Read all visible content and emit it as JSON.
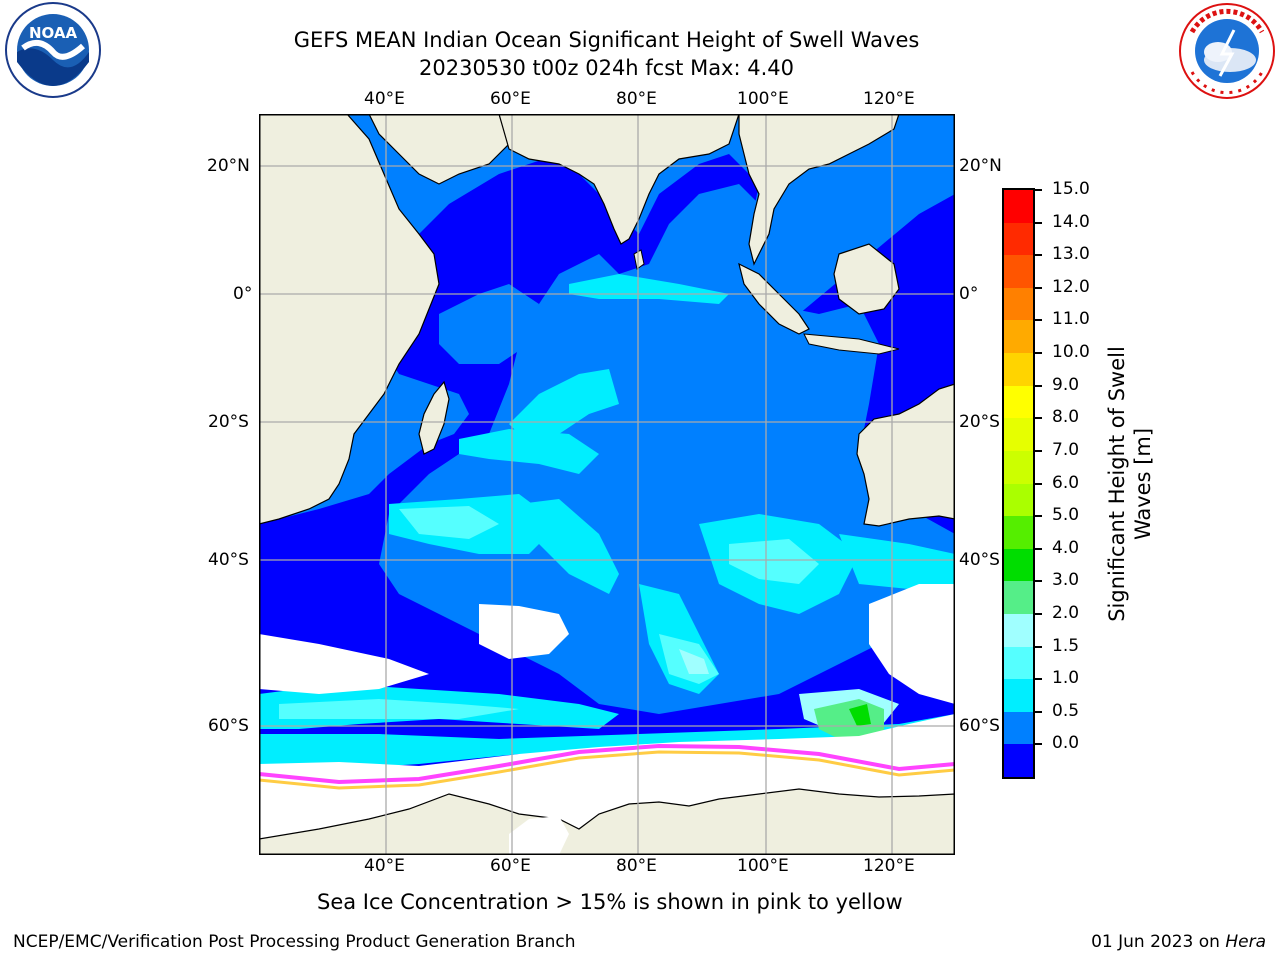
{
  "title": {
    "line1": "GEFS MEAN Indian Ocean Significant Height of Swell Waves",
    "line2": "20230530 t00z 024h fcst   Max: 4.40"
  },
  "logos": {
    "left": "NOAA",
    "left_ring": "NATIONAL OCEANIC AND ATMOSPHERIC ADMINISTRATION · U.S. DEPARTMENT OF COMMERCE",
    "right_ring": "NATIONAL WEATHER SERVICE"
  },
  "map": {
    "lon_labels_top": [
      "40°E",
      "60°E",
      "80°E",
      "100°E",
      "120°E"
    ],
    "lon_labels_bottom": [
      "40°E",
      "60°E",
      "80°E",
      "100°E",
      "120°E"
    ],
    "lat_labels_left": [
      "20°N",
      "0°",
      "20°S",
      "40°S",
      "60°S"
    ],
    "lat_labels_right": [
      "20°N",
      "0°",
      "20°S",
      "40°S",
      "60°S"
    ],
    "lon_values": [
      40,
      60,
      80,
      100,
      120
    ],
    "lat_values": [
      20,
      0,
      -20,
      -40,
      -60
    ],
    "extent": {
      "lon_min": 20,
      "lon_max": 130,
      "lat_min": -70,
      "lat_max": 28
    }
  },
  "colorbar": {
    "label": "Significant Height of Swell Waves [m]",
    "label_line1": "Significant Height of Swell",
    "label_line2": "Waves [m]",
    "ticks": [
      "15.0",
      "14.0",
      "13.0",
      "12.0",
      "11.0",
      "10.0",
      "9.0",
      "8.0",
      "7.0",
      "6.0",
      "5.0",
      "4.0",
      "3.0",
      "2.0",
      "1.5",
      "1.0",
      "0.5",
      "0.0"
    ],
    "colors_top_to_bottom": [
      "#ff0000",
      "#ff2a00",
      "#ff5500",
      "#ff8000",
      "#ffaa00",
      "#ffd400",
      "#ffff00",
      "#e6ff00",
      "#ccff00",
      "#aaff00",
      "#55ee00",
      "#00dd00",
      "#55ee88",
      "#a0ffff",
      "#55ffff",
      "#00eeff",
      "#0080ff",
      "#0000ff"
    ]
  },
  "legend_colors": {
    "land": "#efefdf",
    "ice_mask": "#ffffff",
    "swell_0_05": "#0000ff",
    "swell_05_1": "#0080ff",
    "swell_1_15": "#00eeff",
    "swell_15_2": "#55ffff",
    "swell_2_3": "#a0ffff",
    "swell_3_4": "#55ee88",
    "swell_4_5": "#00dd00",
    "ice_pink": "#ff44ff",
    "ice_yellow": "#ffcc44"
  },
  "caption": "Sea Ice Concentration > 15% is shown in pink to yellow",
  "footer": {
    "left": "NCEP/EMC/Verification Post Processing Product Generation Branch",
    "right_prefix": "01 Jun 2023 on ",
    "right_host": "Hera"
  }
}
